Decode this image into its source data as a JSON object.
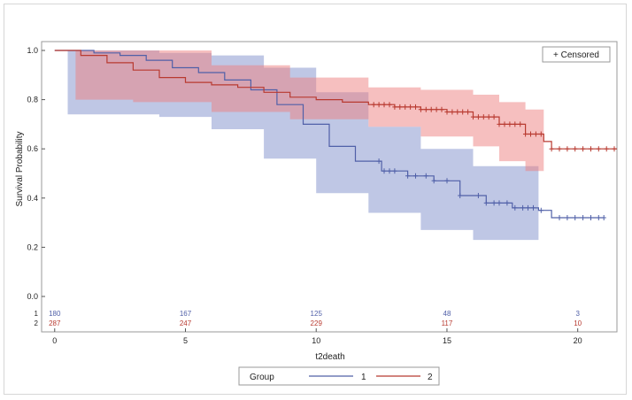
{
  "chart_data": {
    "type": "line",
    "title": "",
    "xlabel": "t2death",
    "ylabel": "Survival Probability",
    "xlim": [
      -0.5,
      21.5
    ],
    "ylim": [
      0.0,
      1.0
    ],
    "x_ticks": [
      "0",
      "5",
      "10",
      "15",
      "20"
    ],
    "y_ticks": [
      "0.0",
      "0.2",
      "0.4",
      "0.6",
      "0.8",
      "1.0"
    ],
    "grid": false,
    "censored_label": "+ Censored",
    "legend": {
      "title": "Group",
      "placement": "bottom",
      "entries": [
        "1",
        "2"
      ]
    },
    "series": [
      {
        "name": "1",
        "color": "#5060a8",
        "band_color": "#7f8fcc",
        "survival": [
          [
            0,
            1.0
          ],
          [
            0.8,
            1.0
          ],
          [
            1.5,
            0.99
          ],
          [
            2.5,
            0.98
          ],
          [
            3.5,
            0.96
          ],
          [
            4.5,
            0.93
          ],
          [
            5.5,
            0.91
          ],
          [
            6.5,
            0.88
          ],
          [
            7.5,
            0.84
          ],
          [
            8.5,
            0.78
          ],
          [
            9.5,
            0.7
          ],
          [
            10.5,
            0.61
          ],
          [
            11.5,
            0.55
          ],
          [
            12.5,
            0.51
          ],
          [
            13.5,
            0.49
          ],
          [
            14.5,
            0.47
          ],
          [
            15.5,
            0.41
          ],
          [
            16.5,
            0.38
          ],
          [
            17.5,
            0.36
          ],
          [
            18.5,
            0.35
          ],
          [
            19,
            0.32
          ],
          [
            21,
            0.32
          ]
        ],
        "ci_upper": [
          [
            0.5,
            1.0
          ],
          [
            2,
            1.0
          ],
          [
            4,
            0.99
          ],
          [
            6,
            0.98
          ],
          [
            8,
            0.93
          ],
          [
            10,
            0.83
          ],
          [
            12,
            0.69
          ],
          [
            14,
            0.6
          ],
          [
            16,
            0.53
          ],
          [
            18.5,
            0.48
          ]
        ],
        "ci_lower": [
          [
            0.5,
            0.74
          ],
          [
            2,
            0.74
          ],
          [
            4,
            0.74
          ],
          [
            6,
            0.73
          ],
          [
            8,
            0.68
          ],
          [
            10,
            0.56
          ],
          [
            12,
            0.42
          ],
          [
            14,
            0.34
          ],
          [
            16,
            0.27
          ],
          [
            18.5,
            0.23
          ]
        ],
        "censored": [
          12.4,
          12.6,
          12.8,
          13.0,
          13.5,
          13.8,
          14.2,
          14.5,
          15.0,
          15.5,
          16.2,
          16.5,
          16.8,
          17.0,
          17.3,
          17.6,
          17.9,
          18.1,
          18.3,
          18.6,
          19.3,
          19.6,
          19.9,
          20.2,
          20.5,
          20.8,
          21.0
        ]
      },
      {
        "name": "2",
        "color": "#b83a30",
        "band_color": "#ee7f7f",
        "survival": [
          [
            0,
            1.0
          ],
          [
            1,
            0.98
          ],
          [
            2,
            0.95
          ],
          [
            3,
            0.92
          ],
          [
            4,
            0.89
          ],
          [
            5,
            0.87
          ],
          [
            6,
            0.86
          ],
          [
            7,
            0.85
          ],
          [
            8,
            0.83
          ],
          [
            9,
            0.81
          ],
          [
            10,
            0.8
          ],
          [
            11,
            0.79
          ],
          [
            12,
            0.78
          ],
          [
            13,
            0.77
          ],
          [
            14,
            0.76
          ],
          [
            15,
            0.75
          ],
          [
            16,
            0.73
          ],
          [
            17,
            0.7
          ],
          [
            18,
            0.66
          ],
          [
            18.7,
            0.63
          ],
          [
            19,
            0.6
          ],
          [
            21.5,
            0.6
          ]
        ],
        "ci_upper": [
          [
            0.8,
            1.0
          ],
          [
            3,
            1.0
          ],
          [
            6,
            0.94
          ],
          [
            9,
            0.89
          ],
          [
            12,
            0.85
          ],
          [
            14,
            0.84
          ],
          [
            16,
            0.82
          ],
          [
            17,
            0.79
          ],
          [
            18,
            0.76
          ],
          [
            18.7,
            0.74
          ]
        ],
        "ci_lower": [
          [
            0.8,
            0.8
          ],
          [
            3,
            0.8
          ],
          [
            6,
            0.79
          ],
          [
            9,
            0.75
          ],
          [
            12,
            0.72
          ],
          [
            14,
            0.69
          ],
          [
            16,
            0.65
          ],
          [
            17,
            0.61
          ],
          [
            18,
            0.55
          ],
          [
            18.7,
            0.51
          ]
        ],
        "censored": [
          12.2,
          12.4,
          12.6,
          12.8,
          13.0,
          13.2,
          13.4,
          13.6,
          13.8,
          14.0,
          14.2,
          14.4,
          14.6,
          14.8,
          15.0,
          15.2,
          15.4,
          15.6,
          15.8,
          16.0,
          16.2,
          16.4,
          16.6,
          16.8,
          17.0,
          17.2,
          17.4,
          17.6,
          17.8,
          18.0,
          18.2,
          18.4,
          18.6,
          19.0,
          19.3,
          19.6,
          19.9,
          20.2,
          20.5,
          20.8,
          21.1,
          21.4
        ]
      }
    ],
    "number_at_risk": [
      {
        "group": "1",
        "color": "#5060a8",
        "values": [
          [
            "0",
            "180"
          ],
          [
            "5",
            "167"
          ],
          [
            "10",
            "125"
          ],
          [
            "15",
            "48"
          ],
          [
            "20",
            "3"
          ]
        ]
      },
      {
        "group": "2",
        "color": "#b83a30",
        "values": [
          [
            "0",
            "287"
          ],
          [
            "5",
            "247"
          ],
          [
            "10",
            "229"
          ],
          [
            "15",
            "117"
          ],
          [
            "20",
            "10"
          ]
        ]
      }
    ]
  }
}
